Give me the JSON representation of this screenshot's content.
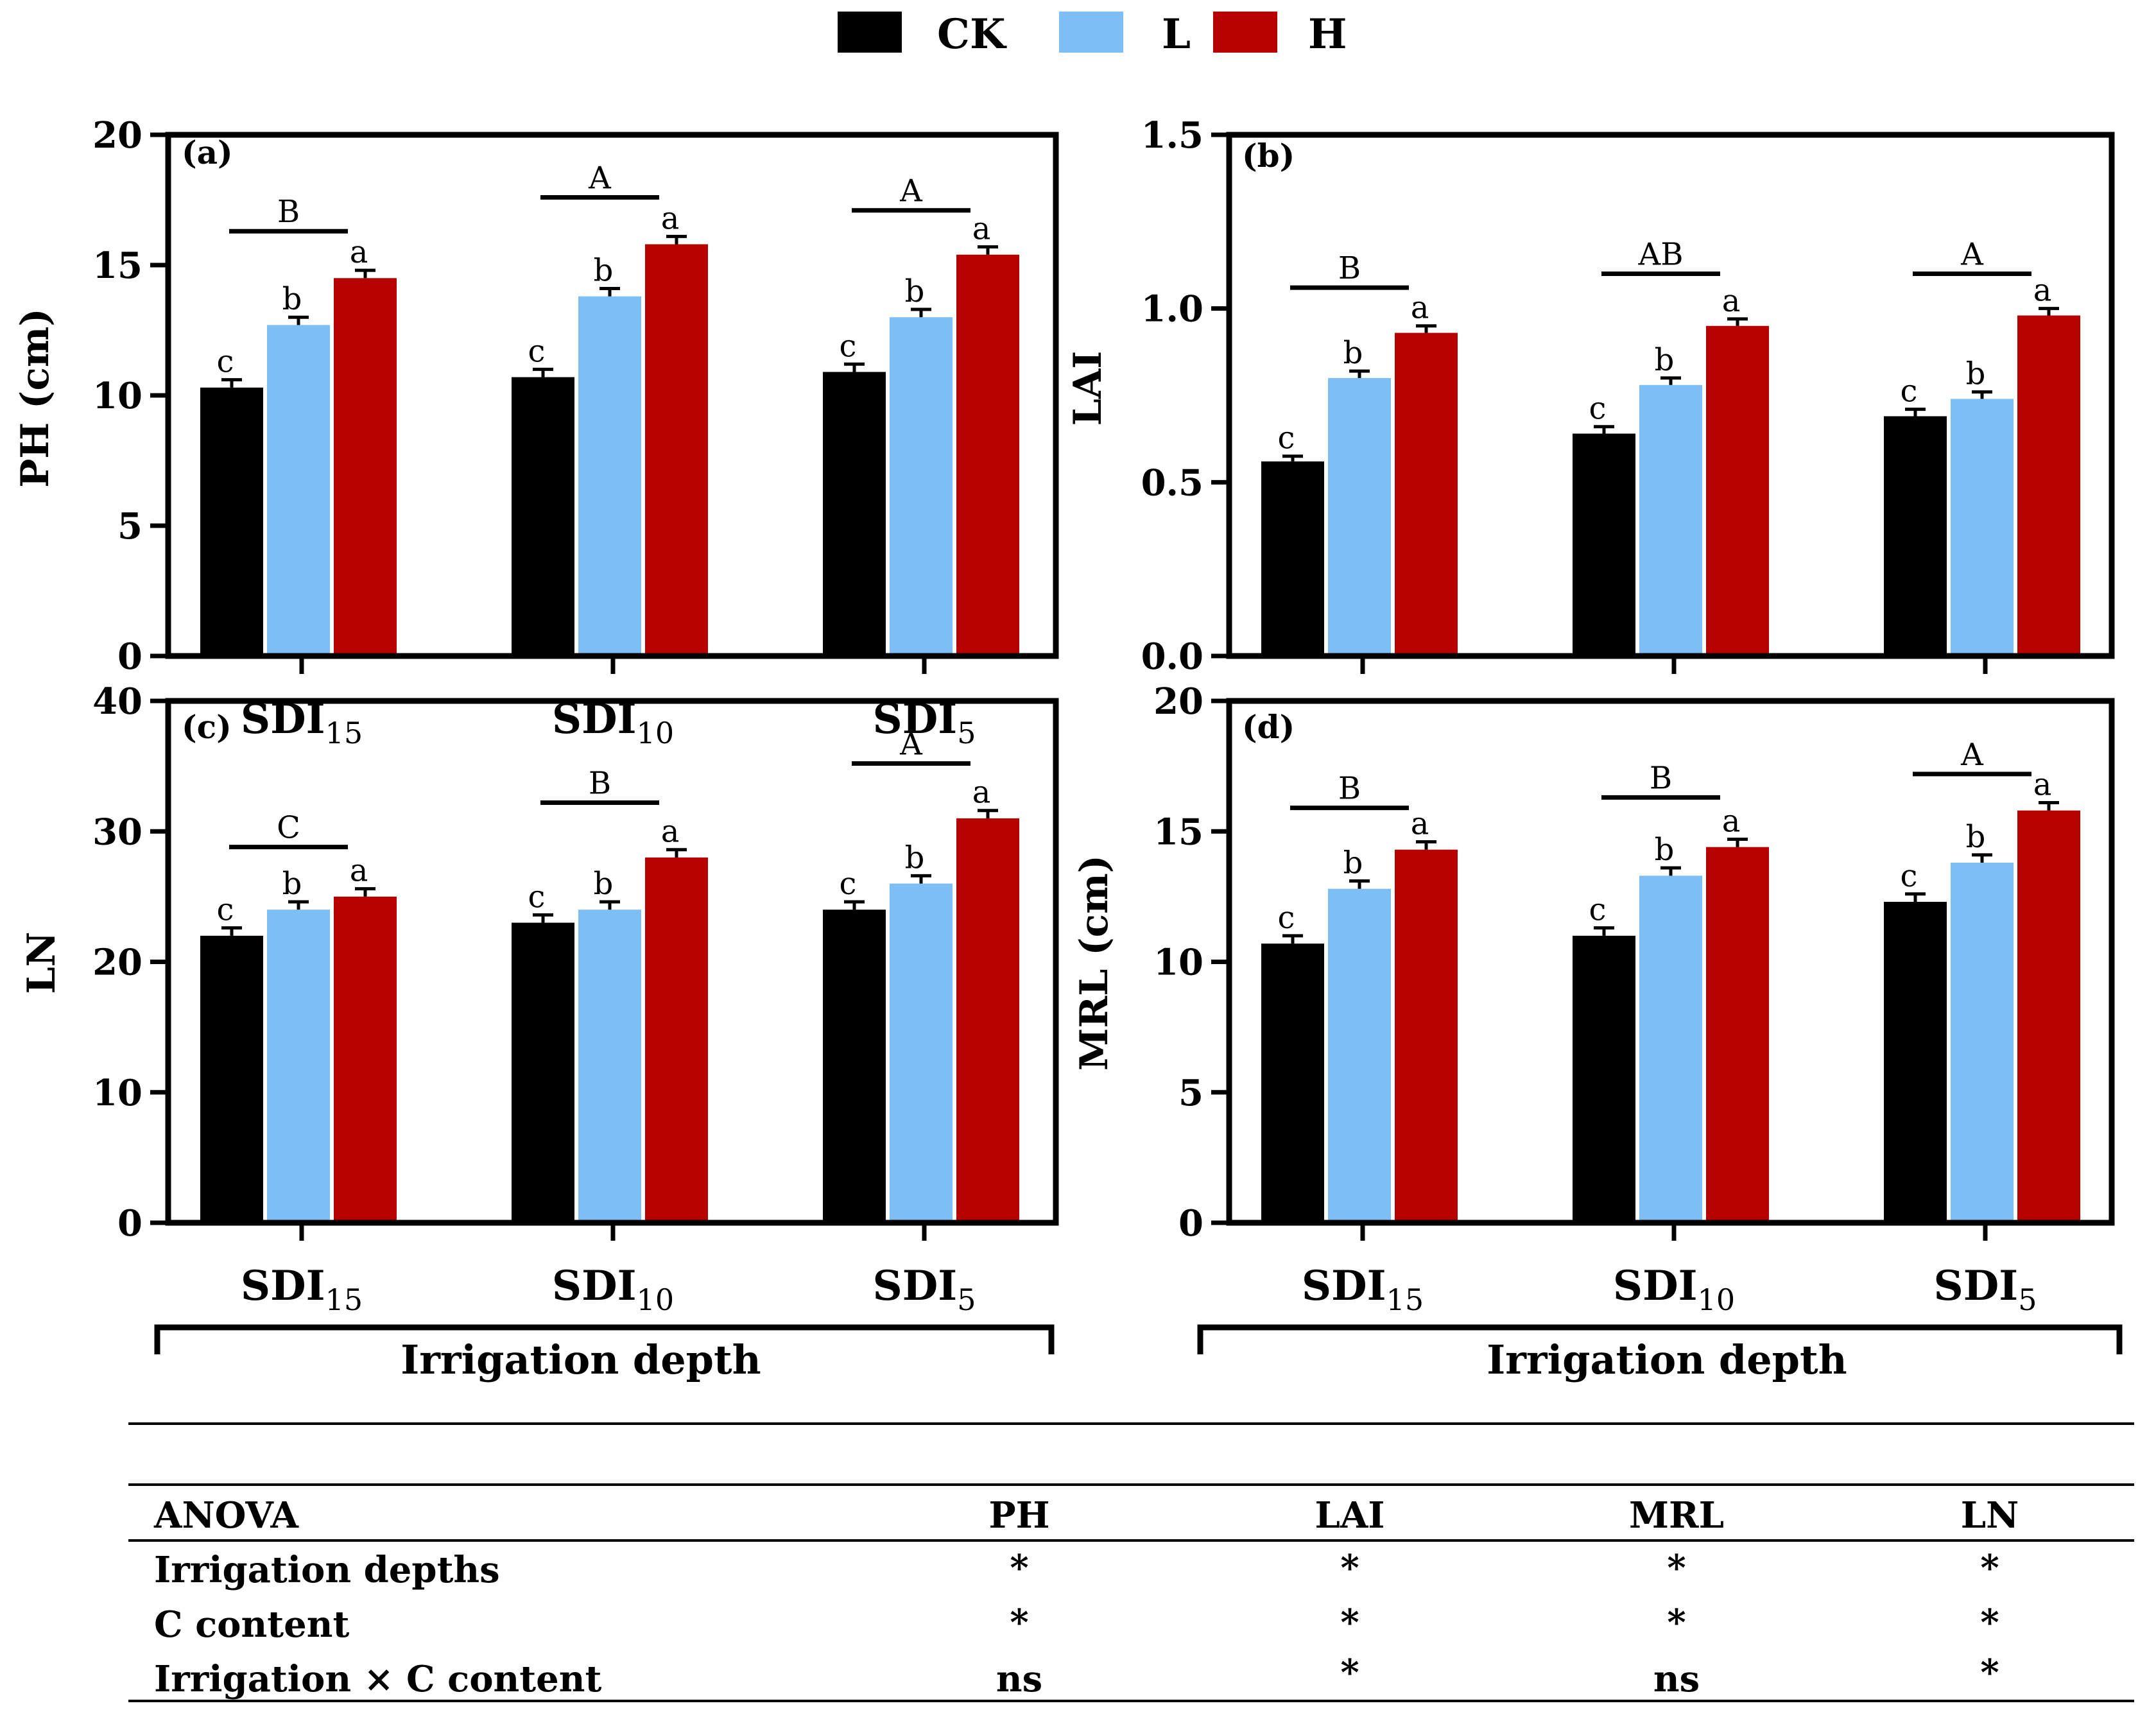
{
  "legend": [
    {
      "label": "CK",
      "color": "#000000"
    },
    {
      "label": "L",
      "color": "#7dbff5"
    },
    {
      "label": "H",
      "color": "#b70000"
    }
  ],
  "chart_data": [
    {
      "id": "a",
      "type": "bar",
      "panel_tag": "(a)",
      "ylabel": "PH (cm)",
      "ylim": [
        0,
        20
      ],
      "yticks": [
        "0",
        "5",
        "10",
        "15",
        "20"
      ],
      "categories": [
        "SDI15",
        "SDI10",
        "SDI5"
      ],
      "category_labels": [
        {
          "main": "SDI",
          "sub": "15"
        },
        {
          "main": "SDI",
          "sub": "10"
        },
        {
          "main": "SDI",
          "sub": "5"
        }
      ],
      "series": [
        {
          "name": "CK",
          "values": [
            10.3,
            10.7,
            10.9
          ],
          "errors": [
            0.3,
            0.3,
            0.3
          ],
          "letters": [
            "c",
            "c",
            "c"
          ]
        },
        {
          "name": "L",
          "values": [
            12.7,
            13.8,
            13.0
          ],
          "errors": [
            0.3,
            0.3,
            0.3
          ],
          "letters": [
            "b",
            "b",
            "b"
          ]
        },
        {
          "name": "H",
          "values": [
            14.5,
            15.8,
            15.4
          ],
          "errors": [
            0.3,
            0.3,
            0.3
          ],
          "letters": [
            "a",
            "a",
            "a"
          ]
        }
      ],
      "group_letters": [
        {
          "label": "B",
          "value": 16.3
        },
        {
          "label": "A",
          "value": 17.6
        },
        {
          "label": "A",
          "value": 17.1
        }
      ]
    },
    {
      "id": "b",
      "type": "bar",
      "panel_tag": "(b)",
      "ylabel": "LAI",
      "ylim": [
        0,
        1.5
      ],
      "yticks": [
        "0.0",
        "0.5",
        "1.0",
        "1.5"
      ],
      "categories": [
        "SDI15",
        "SDI10",
        "SDI5"
      ],
      "category_labels": [],
      "series": [
        {
          "name": "CK",
          "values": [
            0.56,
            0.64,
            0.69
          ],
          "errors": [
            0.015,
            0.02,
            0.02
          ],
          "letters": [
            "c",
            "c",
            "c"
          ]
        },
        {
          "name": "L",
          "values": [
            0.8,
            0.78,
            0.74
          ],
          "errors": [
            0.02,
            0.02,
            0.02
          ],
          "letters": [
            "b",
            "b",
            "b"
          ]
        },
        {
          "name": "H",
          "values": [
            0.93,
            0.95,
            0.98
          ],
          "errors": [
            0.02,
            0.02,
            0.02
          ],
          "letters": [
            "a",
            "a",
            "a"
          ]
        }
      ],
      "group_letters": [
        {
          "label": "B",
          "value": 1.06
        },
        {
          "label": "AB",
          "value": 1.1
        },
        {
          "label": "A",
          "value": 1.1
        }
      ]
    },
    {
      "id": "c",
      "type": "bar",
      "panel_tag": "(c)",
      "ylabel": "LN",
      "ylim": [
        0,
        40
      ],
      "yticks": [
        "0",
        "10",
        "20",
        "30",
        "40"
      ],
      "categories": [
        "SDI15",
        "SDI10",
        "SDI5"
      ],
      "category_labels": [
        {
          "main": "SDI",
          "sub": "15"
        },
        {
          "main": "SDI",
          "sub": "10"
        },
        {
          "main": "SDI",
          "sub": "5"
        }
      ],
      "series": [
        {
          "name": "CK",
          "values": [
            22,
            23,
            24
          ],
          "errors": [
            0.6,
            0.6,
            0.6
          ],
          "letters": [
            "c",
            "c",
            "c"
          ]
        },
        {
          "name": "L",
          "values": [
            24,
            24,
            26
          ],
          "errors": [
            0.6,
            0.6,
            0.6
          ],
          "letters": [
            "b",
            "b",
            "b"
          ]
        },
        {
          "name": "H",
          "values": [
            25,
            28,
            31
          ],
          "errors": [
            0.6,
            0.6,
            0.6
          ],
          "letters": [
            "a",
            "a",
            "a"
          ]
        }
      ],
      "group_letters": [
        {
          "label": "C",
          "value": 28.8
        },
        {
          "label": "B",
          "value": 32.2
        },
        {
          "label": "A",
          "value": 35.2
        }
      ]
    },
    {
      "id": "d",
      "type": "bar",
      "panel_tag": "(d)",
      "ylabel": "MRL (cm)",
      "ylim": [
        0,
        20
      ],
      "yticks": [
        "0",
        "5",
        "10",
        "15",
        "20"
      ],
      "categories": [
        "SDI15",
        "SDI10",
        "SDI5"
      ],
      "category_labels": [
        {
          "main": "SDI",
          "sub": "15"
        },
        {
          "main": "SDI",
          "sub": "10"
        },
        {
          "main": "SDI",
          "sub": "5"
        }
      ],
      "series": [
        {
          "name": "CK",
          "values": [
            10.7,
            11.0,
            12.3
          ],
          "errors": [
            0.3,
            0.3,
            0.3
          ],
          "letters": [
            "c",
            "c",
            "c"
          ]
        },
        {
          "name": "L",
          "values": [
            12.8,
            13.3,
            13.8
          ],
          "errors": [
            0.3,
            0.3,
            0.3
          ],
          "letters": [
            "b",
            "b",
            "b"
          ]
        },
        {
          "name": "H",
          "values": [
            14.3,
            14.4,
            15.8
          ],
          "errors": [
            0.3,
            0.3,
            0.3
          ],
          "letters": [
            "a",
            "a",
            "a"
          ]
        }
      ],
      "group_letters": [
        {
          "label": "B",
          "value": 15.9
        },
        {
          "label": "B",
          "value": 16.3
        },
        {
          "label": "A",
          "value": 17.2
        }
      ]
    }
  ],
  "x_axis_titles": [
    "Irrigation depth",
    "Irrigation depth"
  ],
  "anova": {
    "headers": [
      "ANOVA",
      "PH",
      "LAI",
      "MRL",
      "LN"
    ],
    "rows": [
      {
        "label": "Irrigation depths",
        "values": [
          "*",
          "*",
          "*",
          "*"
        ]
      },
      {
        "label": "C content",
        "values": [
          "*",
          "*",
          "*",
          "*"
        ]
      },
      {
        "label": "Irrigation × C content",
        "values": [
          "ns",
          "*",
          "ns",
          "*"
        ]
      }
    ]
  }
}
